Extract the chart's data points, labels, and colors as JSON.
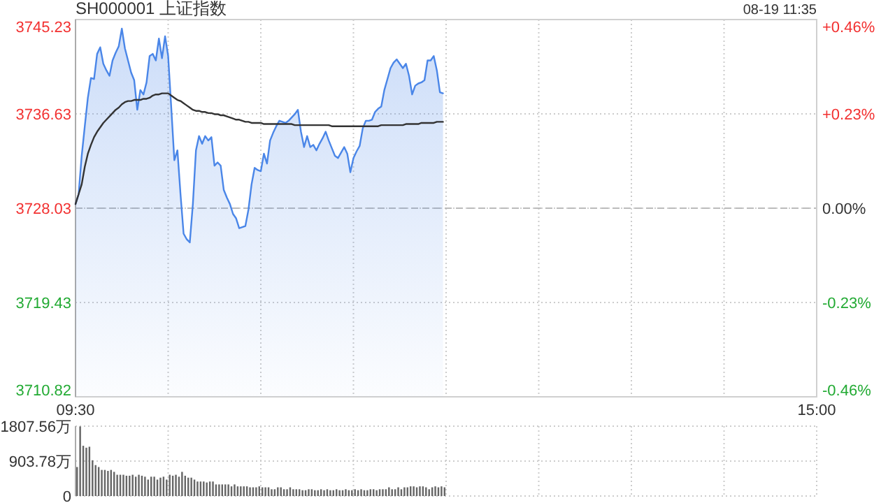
{
  "chart_data": [
    {
      "type": "area",
      "title": "SH000001 上证指数",
      "annotations": [
        "08-19 11:35"
      ],
      "categories": [
        "09:30",
        null,
        null,
        null,
        null,
        null,
        null,
        null,
        null,
        null,
        null,
        null,
        null,
        null,
        null,
        null,
        null,
        null,
        null,
        null,
        null,
        null,
        null,
        null,
        null,
        null,
        null,
        null,
        null,
        null,
        null,
        null,
        null,
        null,
        null,
        null,
        null,
        null,
        null,
        null,
        null,
        null,
        null,
        null,
        null,
        null,
        null,
        null,
        null,
        null,
        null,
        null,
        null,
        null,
        null,
        null,
        null,
        null,
        null,
        null,
        null,
        null,
        null,
        null,
        null,
        null,
        null,
        null,
        null,
        null,
        null,
        null,
        null,
        null,
        null,
        null,
        null,
        null,
        null,
        null,
        null,
        null,
        null,
        null,
        null,
        null,
        null,
        null,
        null,
        null,
        null,
        null,
        null,
        null,
        null,
        null,
        null,
        null,
        null,
        null,
        null,
        null,
        null,
        null,
        null,
        null,
        null,
        null,
        null,
        null,
        null,
        null,
        null,
        null,
        null,
        null,
        null,
        null,
        null,
        null,
        null,
        null,
        null,
        null,
        null,
        null,
        null,
        null,
        null,
        null,
        null,
        null,
        null,
        null,
        null,
        null,
        null,
        null,
        null,
        null,
        null,
        null,
        null,
        null,
        null,
        null,
        null,
        null,
        null,
        null,
        null,
        null,
        null,
        null,
        null,
        null,
        null,
        null,
        null,
        null,
        null,
        null,
        null,
        null,
        null,
        null,
        null,
        null,
        null,
        null,
        null,
        null,
        null,
        null,
        null,
        null,
        null,
        null,
        null,
        null,
        null,
        null,
        null,
        null,
        null,
        null,
        null,
        null,
        null,
        null,
        null,
        null,
        null,
        null,
        null,
        null,
        null,
        null,
        null,
        null,
        null,
        null,
        null,
        null,
        null,
        null,
        null,
        null,
        null,
        null,
        null,
        null,
        null,
        null,
        null,
        null,
        null,
        null,
        null,
        null,
        null,
        null,
        null,
        null,
        null,
        null,
        null,
        null,
        null,
        null,
        null,
        null,
        null,
        null,
        null,
        null,
        null,
        null,
        null,
        null,
        "15:00"
      ],
      "series": [
        {
          "color": "#4a86e8",
          "values": [
            3728.4,
            3729.3,
            3732.8,
            3735.5,
            3738.1,
            3739.9,
            3739.8,
            3742.1,
            3742.7,
            3741.2,
            3740.6,
            3740.1,
            3741.5,
            3742.2,
            3742.8,
            3744.4,
            3742.6,
            3741.5,
            3740.4,
            3739.7,
            3737.0,
            3738.8,
            3738.4,
            3739.5,
            3741.9,
            3742.1,
            3741.5,
            3743.5,
            3741.7,
            3743.7,
            3741.9,
            3737.2,
            3732.4,
            3733.3,
            3729.3,
            3725.7,
            3725.2,
            3724.9,
            3728.4,
            3733.3,
            3734.6,
            3733.9,
            3734.6,
            3734.2,
            3734.5,
            3731.9,
            3732.2,
            3731.9,
            3729.7,
            3729.0,
            3728.4,
            3727.5,
            3727.1,
            3726.2,
            3726.3,
            3726.4,
            3727.9,
            3730.2,
            3731.7,
            3731.5,
            3731.4,
            3733.0,
            3732.1,
            3734.2,
            3734.9,
            3735.5,
            3736.0,
            3735.9,
            3735.8,
            3736.0,
            3736.3,
            3736.6,
            3737.0,
            3735.0,
            3733.6,
            3734.6,
            3733.6,
            3733.8,
            3733.3,
            3733.9,
            3734.4,
            3735.0,
            3734.2,
            3733.5,
            3732.8,
            3732.6,
            3733.1,
            3733.6,
            3733.0,
            3731.3,
            3732.6,
            3733.2,
            3733.7,
            3735.3,
            3736.0,
            3736.0,
            3736.1,
            3736.8,
            3737.1,
            3737.3,
            3738.8,
            3739.8,
            3740.8,
            3741.3,
            3741.6,
            3741.2,
            3740.8,
            3741.2,
            3740.1,
            3738.4,
            3739.2,
            3739.4,
            3739.5,
            3739.7,
            3741.5,
            3741.5,
            3741.9,
            3740.6,
            3738.6,
            3738.5,
            null,
            null,
            null,
            null,
            null,
            null,
            null,
            null,
            null,
            null,
            null,
            null,
            null,
            null,
            null,
            null,
            null,
            null,
            null,
            null,
            null,
            null,
            null,
            null,
            null,
            null,
            null,
            null,
            null,
            null,
            null,
            null,
            null,
            null,
            null,
            null,
            null,
            null,
            null,
            null,
            null,
            null,
            null,
            null,
            null,
            null,
            null,
            null,
            null,
            null,
            null,
            null,
            null,
            null,
            null,
            null,
            null,
            null,
            null,
            null,
            null,
            null,
            null,
            null,
            null,
            null,
            null,
            null,
            null,
            null,
            null,
            null,
            null,
            null,
            null,
            null,
            null,
            null,
            null,
            null,
            null,
            null,
            null,
            null,
            null,
            null,
            null,
            null,
            null,
            null,
            null,
            null,
            null,
            null,
            null,
            null,
            null,
            null,
            null,
            null,
            null,
            null,
            null,
            null,
            null,
            null,
            null,
            null,
            null,
            null,
            null,
            null,
            null,
            null,
            null,
            null,
            null,
            null,
            null,
            null,
            null
          ]
        },
        {
          "type": "line",
          "color": "#333333",
          "values": [
            3728.4,
            3729.3,
            3730.2,
            3731.8,
            3733.0,
            3733.8,
            3734.5,
            3735.0,
            3735.4,
            3735.8,
            3736.1,
            3736.4,
            3736.7,
            3737.0,
            3737.2,
            3737.5,
            3737.7,
            3737.8,
            3737.8,
            3737.9,
            3737.9,
            3737.9,
            3738.0,
            3738.0,
            3738.1,
            3738.3,
            3738.4,
            3738.4,
            3738.5,
            3738.5,
            3738.5,
            3738.3,
            3738.1,
            3737.9,
            3737.8,
            3737.6,
            3737.4,
            3737.2,
            3737.0,
            3736.9,
            3736.9,
            3736.8,
            3736.8,
            3736.7,
            3736.7,
            3736.6,
            3736.6,
            3736.5,
            3736.5,
            3736.4,
            3736.3,
            3736.2,
            3736.1,
            3736.1,
            3736.0,
            3735.9,
            3735.9,
            3735.8,
            3735.8,
            3735.8,
            3735.8,
            3735.7,
            3735.7,
            3735.7,
            3735.7,
            3735.7,
            3735.7,
            3735.7,
            3735.7,
            3735.7,
            3735.7,
            3735.6,
            3735.6,
            3735.6,
            3735.6,
            3735.6,
            3735.6,
            3735.6,
            3735.6,
            3735.6,
            3735.6,
            3735.6,
            3735.6,
            3735.5,
            3735.5,
            3735.5,
            3735.5,
            3735.5,
            3735.5,
            3735.5,
            3735.5,
            3735.5,
            3735.5,
            3735.5,
            3735.5,
            3735.5,
            3735.5,
            3735.5,
            3735.5,
            3735.6,
            3735.6,
            3735.6,
            3735.6,
            3735.6,
            3735.6,
            3735.6,
            3735.6,
            3735.7,
            3735.7,
            3735.7,
            3735.7,
            3735.7,
            3735.8,
            3735.8,
            3735.8,
            3735.8,
            3735.8,
            3735.9,
            3735.9,
            3735.9,
            null,
            null,
            null,
            null,
            null,
            null,
            null,
            null,
            null,
            null,
            null,
            null,
            null,
            null,
            null,
            null,
            null,
            null,
            null,
            null,
            null,
            null,
            null,
            null,
            null,
            null,
            null,
            null,
            null,
            null,
            null,
            null,
            null,
            null,
            null,
            null,
            null,
            null,
            null,
            null,
            null,
            null,
            null,
            null,
            null,
            null,
            null,
            null,
            null,
            null,
            null,
            null,
            null,
            null,
            null,
            null,
            null,
            null,
            null,
            null,
            null,
            null,
            null,
            null,
            null,
            null,
            null,
            null,
            null,
            null,
            null,
            null,
            null,
            null,
            null,
            null,
            null,
            null,
            null,
            null,
            null,
            null,
            null,
            null,
            null,
            null,
            null,
            null,
            null,
            null,
            null,
            null,
            null,
            null,
            null,
            null,
            null,
            null,
            null,
            null,
            null,
            null,
            null,
            null,
            null,
            null,
            null,
            null,
            null,
            null,
            null,
            null,
            null,
            null,
            null,
            null,
            null,
            null,
            null,
            null,
            null
          ]
        }
      ],
      "ylim": [
        3710.82,
        3745.23
      ],
      "yticks": [
        3710.82,
        3719.43,
        3728.03,
        3736.63,
        3745.23
      ],
      "y2lim": [
        -0.46,
        0.46
      ],
      "y2ticks": [
        {
          "value": -0.46,
          "label": "-0.46%"
        },
        {
          "value": -0.23,
          "label": "-0.23%"
        },
        {
          "value": 0,
          "label": "0.00%"
        },
        {
          "value": 0.23,
          "label": "+0.23%"
        },
        {
          "value": 0.46,
          "label": "+0.46%"
        }
      ],
      "ref_lines": [
        {
          "axis": "y",
          "value": 3728.03,
          "line_style": "dashed",
          "color": "#bbbbbb"
        }
      ],
      "grid": true
    },
    {
      "type": "bar",
      "color": "#666666",
      "categories": [
        null,
        null,
        null,
        null,
        null,
        null,
        null,
        null,
        null,
        null,
        null,
        null,
        null,
        null,
        null,
        null,
        null,
        null,
        null,
        null,
        null,
        null,
        null,
        null,
        null,
        null,
        null,
        null,
        null,
        null,
        null,
        null,
        null,
        null,
        null,
        null,
        null,
        null,
        null,
        null,
        null,
        null,
        null,
        null,
        null,
        null,
        null,
        null,
        null,
        null,
        null,
        null,
        null,
        null,
        null,
        null,
        null,
        null,
        null,
        null,
        null,
        null,
        null,
        null,
        null,
        null,
        null,
        null,
        null,
        null,
        null,
        null,
        null,
        null,
        null,
        null,
        null,
        null,
        null,
        null,
        null,
        null,
        null,
        null,
        null,
        null,
        null,
        null,
        null,
        null,
        null,
        null,
        null,
        null,
        null,
        null,
        null,
        null,
        null,
        null,
        null,
        null,
        null,
        null,
        null,
        null,
        null,
        null,
        null,
        null,
        null,
        null,
        null,
        null,
        null,
        null,
        null,
        null,
        null,
        null,
        null,
        null,
        null,
        null,
        null,
        null,
        null,
        null,
        null,
        null,
        null,
        null,
        null,
        null,
        null,
        null,
        null,
        null,
        null,
        null,
        null,
        null,
        null,
        null,
        null,
        null,
        null,
        null,
        null,
        null,
        null,
        null,
        null,
        null,
        null,
        null,
        null,
        null,
        null,
        null,
        null,
        null,
        null,
        null,
        null,
        null,
        null,
        null,
        null,
        null,
        null,
        null,
        null,
        null,
        null,
        null,
        null,
        null,
        null,
        null,
        null,
        null,
        null,
        null,
        null,
        null,
        null,
        null,
        null,
        null,
        null,
        null,
        null,
        null,
        null,
        null,
        null,
        null,
        null,
        null,
        null,
        null,
        null,
        null,
        null,
        null,
        null,
        null,
        null,
        null,
        null,
        null,
        null,
        null,
        null,
        null,
        null,
        null,
        null,
        null,
        null,
        null,
        null,
        null,
        null,
        null,
        null,
        null,
        null,
        null,
        null,
        null,
        null,
        null,
        null,
        null,
        null,
        null,
        null,
        null,
        null
      ],
      "values": [
        750,
        1800,
        1300,
        1250,
        1275,
        925,
        800,
        750,
        675,
        675,
        650,
        675,
        625,
        550,
        550,
        550,
        525,
        525,
        550,
        500,
        550,
        525,
        500,
        425,
        500,
        500,
        425,
        475,
        500,
        425,
        550,
        525,
        550,
        500,
        625,
        525,
        475,
        475,
        425,
        375,
        375,
        375,
        350,
        375,
        375,
        300,
        300,
        300,
        300,
        300,
        250,
        300,
        250,
        250,
        250,
        250,
        225,
        225,
        225,
        250,
        225,
        225,
        225,
        175,
        175,
        225,
        225,
        175,
        175,
        225,
        175,
        175,
        175,
        150,
        150,
        175,
        175,
        150,
        150,
        175,
        150,
        175,
        150,
        150,
        175,
        150,
        150,
        175,
        150,
        150,
        175,
        150,
        175,
        150,
        150,
        175,
        175,
        150,
        175,
        175,
        175,
        225,
        175,
        175,
        225,
        175,
        225,
        225,
        250,
        250,
        225,
        250,
        250,
        225,
        175,
        225,
        250,
        225,
        250,
        225,
        null,
        null,
        null,
        null,
        null,
        null,
        null,
        null,
        null,
        null,
        null,
        null,
        null,
        null,
        null,
        null,
        null,
        null,
        null,
        null,
        null,
        null,
        null,
        null,
        null,
        null,
        null,
        null,
        null,
        null,
        null,
        null,
        null,
        null,
        null,
        null,
        null,
        null,
        null,
        null,
        null,
        null,
        null,
        null,
        null,
        null,
        null,
        null,
        null,
        null,
        null,
        null,
        null,
        null,
        null,
        null,
        null,
        null,
        null,
        null,
        null,
        null,
        null,
        null,
        null,
        null,
        null,
        null,
        null,
        null,
        null,
        null,
        null,
        null,
        null,
        null,
        null,
        null,
        null,
        null,
        null,
        null,
        null,
        null,
        null,
        null,
        null,
        null,
        null,
        null,
        null,
        null,
        null,
        null,
        null,
        null,
        null,
        null,
        null,
        null,
        null,
        null,
        null,
        null,
        null,
        null,
        null,
        null,
        null,
        null,
        null,
        null,
        null,
        null,
        null,
        null,
        null,
        null,
        null,
        null,
        null
      ],
      "ylim": [
        0,
        1807.56
      ],
      "yticks": [
        0,
        {
          "value": 903.78,
          "label": "903.78万"
        },
        {
          "value": 1807.56,
          "label": "1807.56万"
        }
      ],
      "grid": true,
      "tick_labels": "y"
    }
  ]
}
